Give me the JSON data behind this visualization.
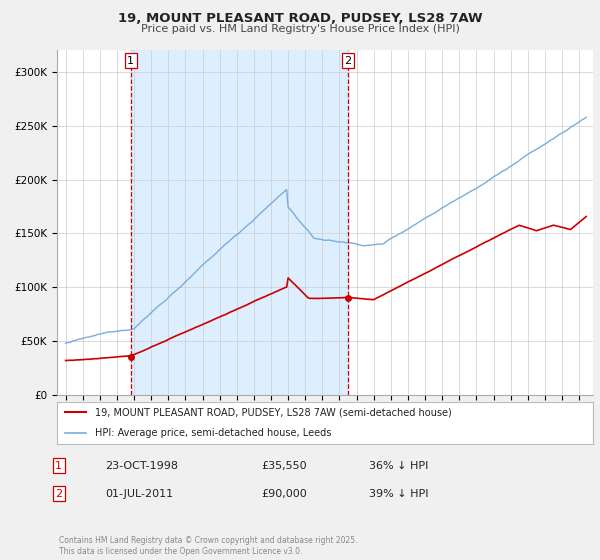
{
  "title": "19, MOUNT PLEASANT ROAD, PUDSEY, LS28 7AW",
  "subtitle": "Price paid vs. HM Land Registry's House Price Index (HPI)",
  "legend_line1": "19, MOUNT PLEASANT ROAD, PUDSEY, LS28 7AW (semi-detached house)",
  "legend_line2": "HPI: Average price, semi-detached house, Leeds",
  "line_color_red": "#cc0000",
  "line_color_blue": "#7aaddb",
  "shaded_color": "#ddeeff",
  "vline1_x": 1998.81,
  "vline2_x": 2011.5,
  "marker1_x": 1998.81,
  "marker1_y": 35550,
  "marker2_x": 2011.5,
  "marker2_y": 90000,
  "table_row1": [
    "1",
    "23-OCT-1998",
    "£35,550",
    "36% ↓ HPI"
  ],
  "table_row2": [
    "2",
    "01-JUL-2011",
    "£90,000",
    "39% ↓ HPI"
  ],
  "copyright_text": "Contains HM Land Registry data © Crown copyright and database right 2025.\nThis data is licensed under the Open Government Licence v3.0.",
  "ylim": [
    0,
    320000
  ],
  "xlim": [
    1994.5,
    2025.8
  ],
  "yticks": [
    0,
    50000,
    100000,
    150000,
    200000,
    250000,
    300000
  ],
  "ytick_labels": [
    "£0",
    "£50K",
    "£100K",
    "£150K",
    "£200K",
    "£250K",
    "£300K"
  ],
  "background_color": "#f0f0f0",
  "plot_bg_color": "#ffffff",
  "grid_color": "#cccccc"
}
